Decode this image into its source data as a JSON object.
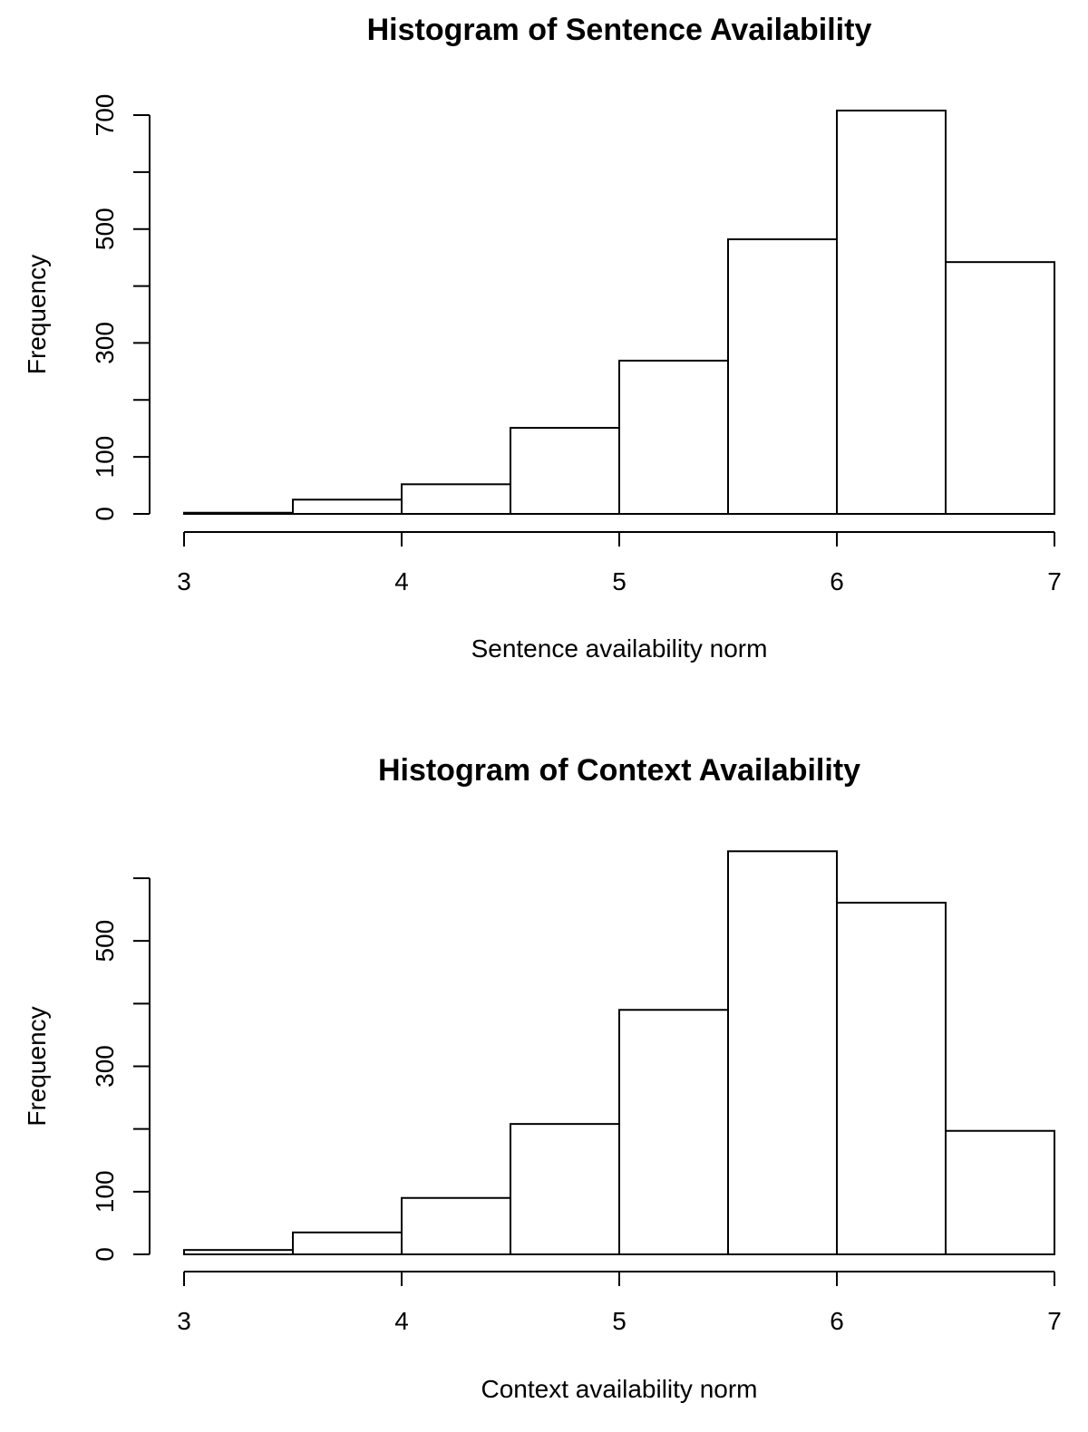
{
  "chart_data": [
    {
      "type": "bar",
      "title": "Histogram of Sentence Availability",
      "xlabel": "Sentence availability norm",
      "ylabel": "Frequency",
      "bin_edges": [
        3,
        3.5,
        4,
        4.5,
        5,
        5.5,
        6,
        6.5,
        7
      ],
      "values": [
        2,
        25,
        52,
        151,
        269,
        482,
        708,
        442
      ],
      "xlim": [
        3,
        7
      ],
      "ylim": [
        0,
        700
      ],
      "x_ticks": [
        3,
        4,
        5,
        6,
        7
      ],
      "x_tick_labels": [
        "3",
        "4",
        "5",
        "6",
        "7"
      ],
      "y_ticks": [
        0,
        100,
        200,
        300,
        400,
        500,
        600,
        700
      ],
      "y_tick_labels": [
        {
          "value": 0,
          "label": "0"
        },
        {
          "value": 100,
          "label": "100"
        },
        {
          "value": 300,
          "label": "300"
        },
        {
          "value": 500,
          "label": "500"
        },
        {
          "value": 700,
          "label": "700"
        }
      ],
      "grid": false
    },
    {
      "type": "bar",
      "title": "Histogram of Context Availability",
      "xlabel": "Context availability norm",
      "ylabel": "Frequency",
      "bin_edges": [
        3,
        3.5,
        4,
        4.5,
        5,
        5.5,
        6,
        6.5,
        7
      ],
      "values": [
        7,
        35,
        90,
        208,
        390,
        643,
        561,
        197
      ],
      "xlim": [
        3,
        7
      ],
      "ylim": [
        0,
        600
      ],
      "x_ticks": [
        3,
        4,
        5,
        6,
        7
      ],
      "x_tick_labels": [
        "3",
        "4",
        "5",
        "6",
        "7"
      ],
      "y_ticks": [
        0,
        100,
        200,
        300,
        400,
        500,
        600
      ],
      "y_tick_labels": [
        {
          "value": 0,
          "label": "0"
        },
        {
          "value": 100,
          "label": "100"
        },
        {
          "value": 300,
          "label": "300"
        },
        {
          "value": 500,
          "label": "500"
        }
      ],
      "grid": false
    }
  ]
}
